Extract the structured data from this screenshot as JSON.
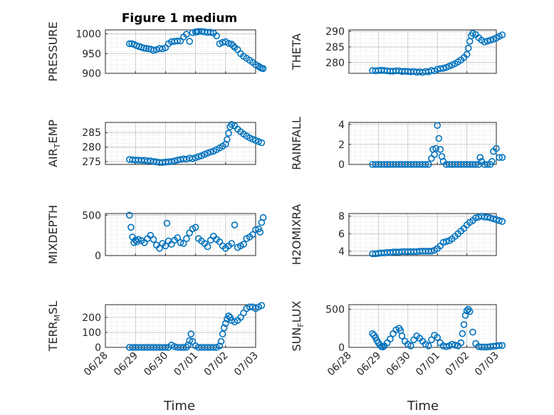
{
  "figure": {
    "title": "Figure 1 medium",
    "xlabel": "Time",
    "x_ticklabels": [
      "06/28",
      "06/29",
      "06/30",
      "07/01",
      "07/02",
      "07/03"
    ],
    "marker_color": "#0072BD"
  },
  "chart_data": [
    {
      "type": "scatter",
      "ylabel": "PRESSURE",
      "ylim": [
        900,
        1010
      ],
      "yticks": [
        900,
        950,
        1000
      ],
      "x_ticklabels_shown": false,
      "xlim": [
        "06/28",
        "07/03"
      ],
      "grid": "major+minor",
      "x": [
        0.8,
        0.88,
        0.96,
        1.04,
        1.12,
        1.2,
        1.28,
        1.36,
        1.44,
        1.52,
        1.6,
        1.7,
        1.8,
        1.9,
        2.0,
        2.1,
        2.2,
        2.3,
        2.4,
        2.5,
        2.6,
        2.7,
        2.8,
        2.9,
        3.0,
        3.05,
        3.1,
        3.2,
        3.3,
        3.4,
        3.5,
        3.6,
        3.7,
        3.8,
        3.9,
        4.0,
        4.1,
        4.2,
        4.25,
        4.3,
        4.4,
        4.5,
        4.6,
        4.7,
        4.8,
        4.9,
        5.0,
        5.1,
        5.15,
        5.2,
        5.25
      ],
      "y": [
        975,
        975,
        973,
        970,
        968,
        966,
        964,
        963,
        962,
        961,
        958,
        960,
        963,
        962,
        965,
        975,
        980,
        981,
        982,
        982,
        992,
        999,
        981,
        1003,
        1005,
        1005,
        1006,
        1006,
        1005,
        1004,
        1004,
        1002,
        995,
        975,
        978,
        980,
        976,
        974,
        970,
        966,
        960,
        950,
        943,
        938,
        933,
        928,
        922,
        918,
        915,
        913,
        912
      ]
    },
    {
      "type": "scatter",
      "ylabel": "THETA",
      "ylim": [
        276.5,
        290.5
      ],
      "yticks": [
        280,
        285,
        290
      ],
      "x_ticklabels_shown": false,
      "xlim": [
        "06/28",
        "07/03"
      ],
      "grid": "major+minor",
      "x": [
        0.8,
        0.9,
        1.0,
        1.1,
        1.2,
        1.3,
        1.4,
        1.5,
        1.6,
        1.7,
        1.8,
        1.9,
        2.0,
        2.1,
        2.2,
        2.3,
        2.4,
        2.5,
        2.6,
        2.7,
        2.8,
        2.9,
        3.0,
        3.1,
        3.2,
        3.3,
        3.4,
        3.5,
        3.6,
        3.7,
        3.8,
        3.9,
        4.0,
        4.05,
        4.1,
        4.15,
        4.2,
        4.3,
        4.4,
        4.5,
        4.6,
        4.7,
        4.8,
        4.9,
        5.0,
        5.1,
        5.2
      ],
      "y": [
        277.4,
        277.3,
        277.4,
        277.5,
        277.4,
        277.3,
        277.2,
        277.2,
        277.3,
        277.3,
        277.1,
        277.2,
        277.1,
        277.0,
        277.1,
        276.9,
        277.0,
        276.8,
        277.1,
        277.0,
        277.4,
        277.3,
        277.8,
        278.0,
        278.1,
        278.4,
        278.8,
        279.2,
        279.6,
        280.2,
        280.8,
        281.6,
        282.6,
        284.6,
        286.8,
        288.6,
        289.4,
        289.0,
        288.0,
        287.2,
        286.6,
        286.9,
        287.2,
        287.5,
        287.9,
        288.4,
        288.9
      ]
    },
    {
      "type": "scatter",
      "ylabel": "AIR_TEMP",
      "ylim": [
        274,
        288.5
      ],
      "yticks": [
        275,
        280,
        285
      ],
      "x_ticklabels_shown": false,
      "xlim": [
        "06/28",
        "07/03"
      ],
      "grid": "major+minor",
      "x": [
        0.8,
        0.9,
        1.0,
        1.1,
        1.2,
        1.3,
        1.4,
        1.5,
        1.6,
        1.7,
        1.8,
        1.9,
        2.0,
        2.1,
        2.2,
        2.3,
        2.4,
        2.5,
        2.6,
        2.7,
        2.8,
        2.9,
        3.0,
        3.1,
        3.2,
        3.3,
        3.4,
        3.5,
        3.6,
        3.7,
        3.8,
        3.9,
        4.0,
        4.05,
        4.1,
        4.15,
        4.2,
        4.3,
        4.4,
        4.5,
        4.6,
        4.7,
        4.8,
        4.9,
        5.0,
        5.1,
        5.2
      ],
      "y": [
        275.7,
        275.6,
        275.5,
        275.5,
        275.4,
        275.4,
        275.2,
        275.2,
        275.0,
        274.9,
        274.7,
        274.7,
        274.8,
        274.9,
        275.0,
        275.2,
        275.5,
        275.7,
        275.9,
        275.8,
        276.2,
        276.0,
        276.3,
        276.7,
        277.0,
        277.5,
        277.9,
        278.3,
        278.6,
        279.1,
        279.7,
        280.3,
        281.0,
        282.6,
        284.8,
        287.0,
        287.8,
        287.3,
        286.2,
        285.3,
        284.5,
        283.8,
        283.2,
        282.7,
        282.3,
        281.9,
        281.5
      ]
    },
    {
      "type": "scatter",
      "ylabel": "RAINFALL",
      "ylim": [
        0,
        4.2
      ],
      "yticks": [
        0,
        2,
        4
      ],
      "x_ticklabels_shown": false,
      "xlim": [
        "06/28",
        "07/03"
      ],
      "grid": "major+minor",
      "x": [
        0.8,
        0.9,
        1.0,
        1.1,
        1.2,
        1.3,
        1.4,
        1.5,
        1.6,
        1.7,
        1.8,
        1.9,
        2.0,
        2.1,
        2.2,
        2.3,
        2.4,
        2.5,
        2.6,
        2.7,
        2.8,
        2.85,
        2.9,
        2.95,
        3.0,
        3.05,
        3.1,
        3.15,
        3.2,
        3.3,
        3.4,
        3.5,
        3.6,
        3.7,
        3.8,
        3.9,
        4.0,
        4.1,
        4.2,
        4.3,
        4.4,
        4.45,
        4.5,
        4.6,
        4.7,
        4.8,
        4.85,
        4.9,
        5.0,
        5.1,
        5.2
      ],
      "y": [
        0,
        0,
        0,
        0,
        0,
        0,
        0,
        0,
        0,
        0,
        0,
        0,
        0,
        0,
        0,
        0,
        0,
        0,
        0,
        0,
        0.6,
        1.5,
        1.0,
        1.6,
        3.9,
        2.6,
        1.5,
        0.8,
        0.3,
        0,
        0,
        0,
        0,
        0,
        0,
        0,
        0,
        0,
        0,
        0,
        0,
        0.7,
        0.3,
        0,
        0,
        0,
        0.3,
        1.3,
        1.6,
        0.7,
        0.7
      ]
    },
    {
      "type": "scatter",
      "ylabel": "MIXDEPTH",
      "ylim": [
        0,
        520
      ],
      "yticks": [
        0,
        500
      ],
      "x_ticklabels_shown": false,
      "xlim": [
        "06/28",
        "07/03"
      ],
      "grid": "major+minor",
      "x": [
        0.8,
        0.85,
        0.9,
        0.95,
        1.0,
        1.05,
        1.1,
        1.2,
        1.3,
        1.4,
        1.5,
        1.6,
        1.7,
        1.8,
        1.9,
        2.0,
        2.05,
        2.1,
        2.2,
        2.3,
        2.4,
        2.5,
        2.6,
        2.7,
        2.8,
        2.9,
        3.0,
        3.1,
        3.2,
        3.3,
        3.4,
        3.5,
        3.6,
        3.7,
        3.8,
        3.9,
        4.0,
        4.1,
        4.2,
        4.3,
        4.4,
        4.5,
        4.6,
        4.7,
        4.8,
        4.9,
        5.0,
        5.1,
        5.15,
        5.2,
        5.25
      ],
      "y": [
        500,
        350,
        230,
        160,
        190,
        170,
        200,
        185,
        160,
        210,
        250,
        200,
        130,
        90,
        150,
        120,
        400,
        180,
        140,
        190,
        220,
        160,
        150,
        210,
        280,
        330,
        350,
        210,
        180,
        150,
        110,
        190,
        240,
        200,
        170,
        120,
        90,
        120,
        150,
        380,
        100,
        120,
        140,
        210,
        230,
        260,
        320,
        330,
        290,
        410,
        470
      ]
    },
    {
      "type": "scatter",
      "ylabel": "H2OMIXRA",
      "ylim": [
        3.5,
        8.3
      ],
      "yticks": [
        4,
        6,
        8
      ],
      "x_ticklabels_shown": false,
      "xlim": [
        "06/28",
        "07/03"
      ],
      "grid": "major+minor",
      "x": [
        0.8,
        0.9,
        1.0,
        1.1,
        1.2,
        1.3,
        1.4,
        1.5,
        1.6,
        1.7,
        1.8,
        1.9,
        2.0,
        2.1,
        2.2,
        2.3,
        2.4,
        2.5,
        2.6,
        2.7,
        2.8,
        2.9,
        3.0,
        3.1,
        3.2,
        3.3,
        3.4,
        3.5,
        3.6,
        3.7,
        3.8,
        3.9,
        4.0,
        4.1,
        4.2,
        4.3,
        4.4,
        4.5,
        4.6,
        4.7,
        4.8,
        4.9,
        5.0,
        5.1,
        5.2
      ],
      "y": [
        3.7,
        3.7,
        3.75,
        3.8,
        3.8,
        3.85,
        3.85,
        3.9,
        3.9,
        3.9,
        3.95,
        3.95,
        3.95,
        3.95,
        3.95,
        3.95,
        4.0,
        4.0,
        4.0,
        4.0,
        4.0,
        4.1,
        4.3,
        4.6,
        5.0,
        5.1,
        5.2,
        5.4,
        5.7,
        6.0,
        6.3,
        6.6,
        7.0,
        7.3,
        7.5,
        7.8,
        7.9,
        8.0,
        7.9,
        7.9,
        7.8,
        7.7,
        7.6,
        7.5,
        7.4
      ]
    },
    {
      "type": "scatter",
      "ylabel": "TERR_MSL",
      "ylim": [
        0,
        285
      ],
      "yticks": [
        0,
        100,
        200
      ],
      "x_ticklabels_shown": true,
      "xlim": [
        "06/28",
        "07/03"
      ],
      "grid": "major+minor",
      "x": [
        0.8,
        0.9,
        1.0,
        1.1,
        1.2,
        1.3,
        1.4,
        1.5,
        1.6,
        1.7,
        1.8,
        1.9,
        2.0,
        2.1,
        2.2,
        2.3,
        2.4,
        2.5,
        2.6,
        2.7,
        2.75,
        2.8,
        2.85,
        2.9,
        3.0,
        3.1,
        3.2,
        3.3,
        3.4,
        3.5,
        3.6,
        3.7,
        3.8,
        3.85,
        3.9,
        3.95,
        4.0,
        4.05,
        4.1,
        4.15,
        4.2,
        4.3,
        4.4,
        4.5,
        4.6,
        4.7,
        4.8,
        4.9,
        5.0,
        5.1,
        5.2
      ],
      "y": [
        0,
        0,
        0,
        0,
        0,
        0,
        0,
        0,
        0,
        0,
        0,
        0,
        0,
        0,
        15,
        5,
        0,
        0,
        0,
        0,
        15,
        45,
        90,
        40,
        10,
        0,
        0,
        0,
        0,
        0,
        0,
        0,
        10,
        40,
        90,
        130,
        160,
        190,
        210,
        200,
        180,
        170,
        180,
        200,
        230,
        260,
        270,
        270,
        260,
        270,
        280
      ]
    },
    {
      "type": "scatter",
      "ylabel": "SUN_FLUX",
      "ylim": [
        0,
        560
      ],
      "yticks": [
        0,
        500
      ],
      "x_ticklabels_shown": true,
      "xlim": [
        "06/28",
        "07/03"
      ],
      "grid": "major+minor",
      "x": [
        0.8,
        0.85,
        0.9,
        0.95,
        1.0,
        1.05,
        1.1,
        1.15,
        1.2,
        1.3,
        1.4,
        1.5,
        1.6,
        1.7,
        1.75,
        1.8,
        1.9,
        2.0,
        2.1,
        2.2,
        2.3,
        2.4,
        2.5,
        2.6,
        2.7,
        2.8,
        2.9,
        3.0,
        3.1,
        3.2,
        3.3,
        3.4,
        3.5,
        3.6,
        3.7,
        3.8,
        3.85,
        3.9,
        3.95,
        4.0,
        4.05,
        4.1,
        4.2,
        4.3,
        4.4,
        4.5,
        4.6,
        4.7,
        4.8,
        4.9,
        5.0,
        5.1,
        5.2
      ],
      "y": [
        180,
        160,
        130,
        90,
        60,
        30,
        10,
        5,
        20,
        60,
        110,
        180,
        230,
        250,
        220,
        150,
        80,
        40,
        20,
        100,
        150,
        120,
        80,
        40,
        20,
        100,
        160,
        130,
        60,
        20,
        10,
        20,
        40,
        30,
        20,
        60,
        180,
        300,
        420,
        480,
        500,
        470,
        200,
        50,
        10,
        5,
        5,
        5,
        10,
        15,
        20,
        25,
        25
      ]
    }
  ]
}
